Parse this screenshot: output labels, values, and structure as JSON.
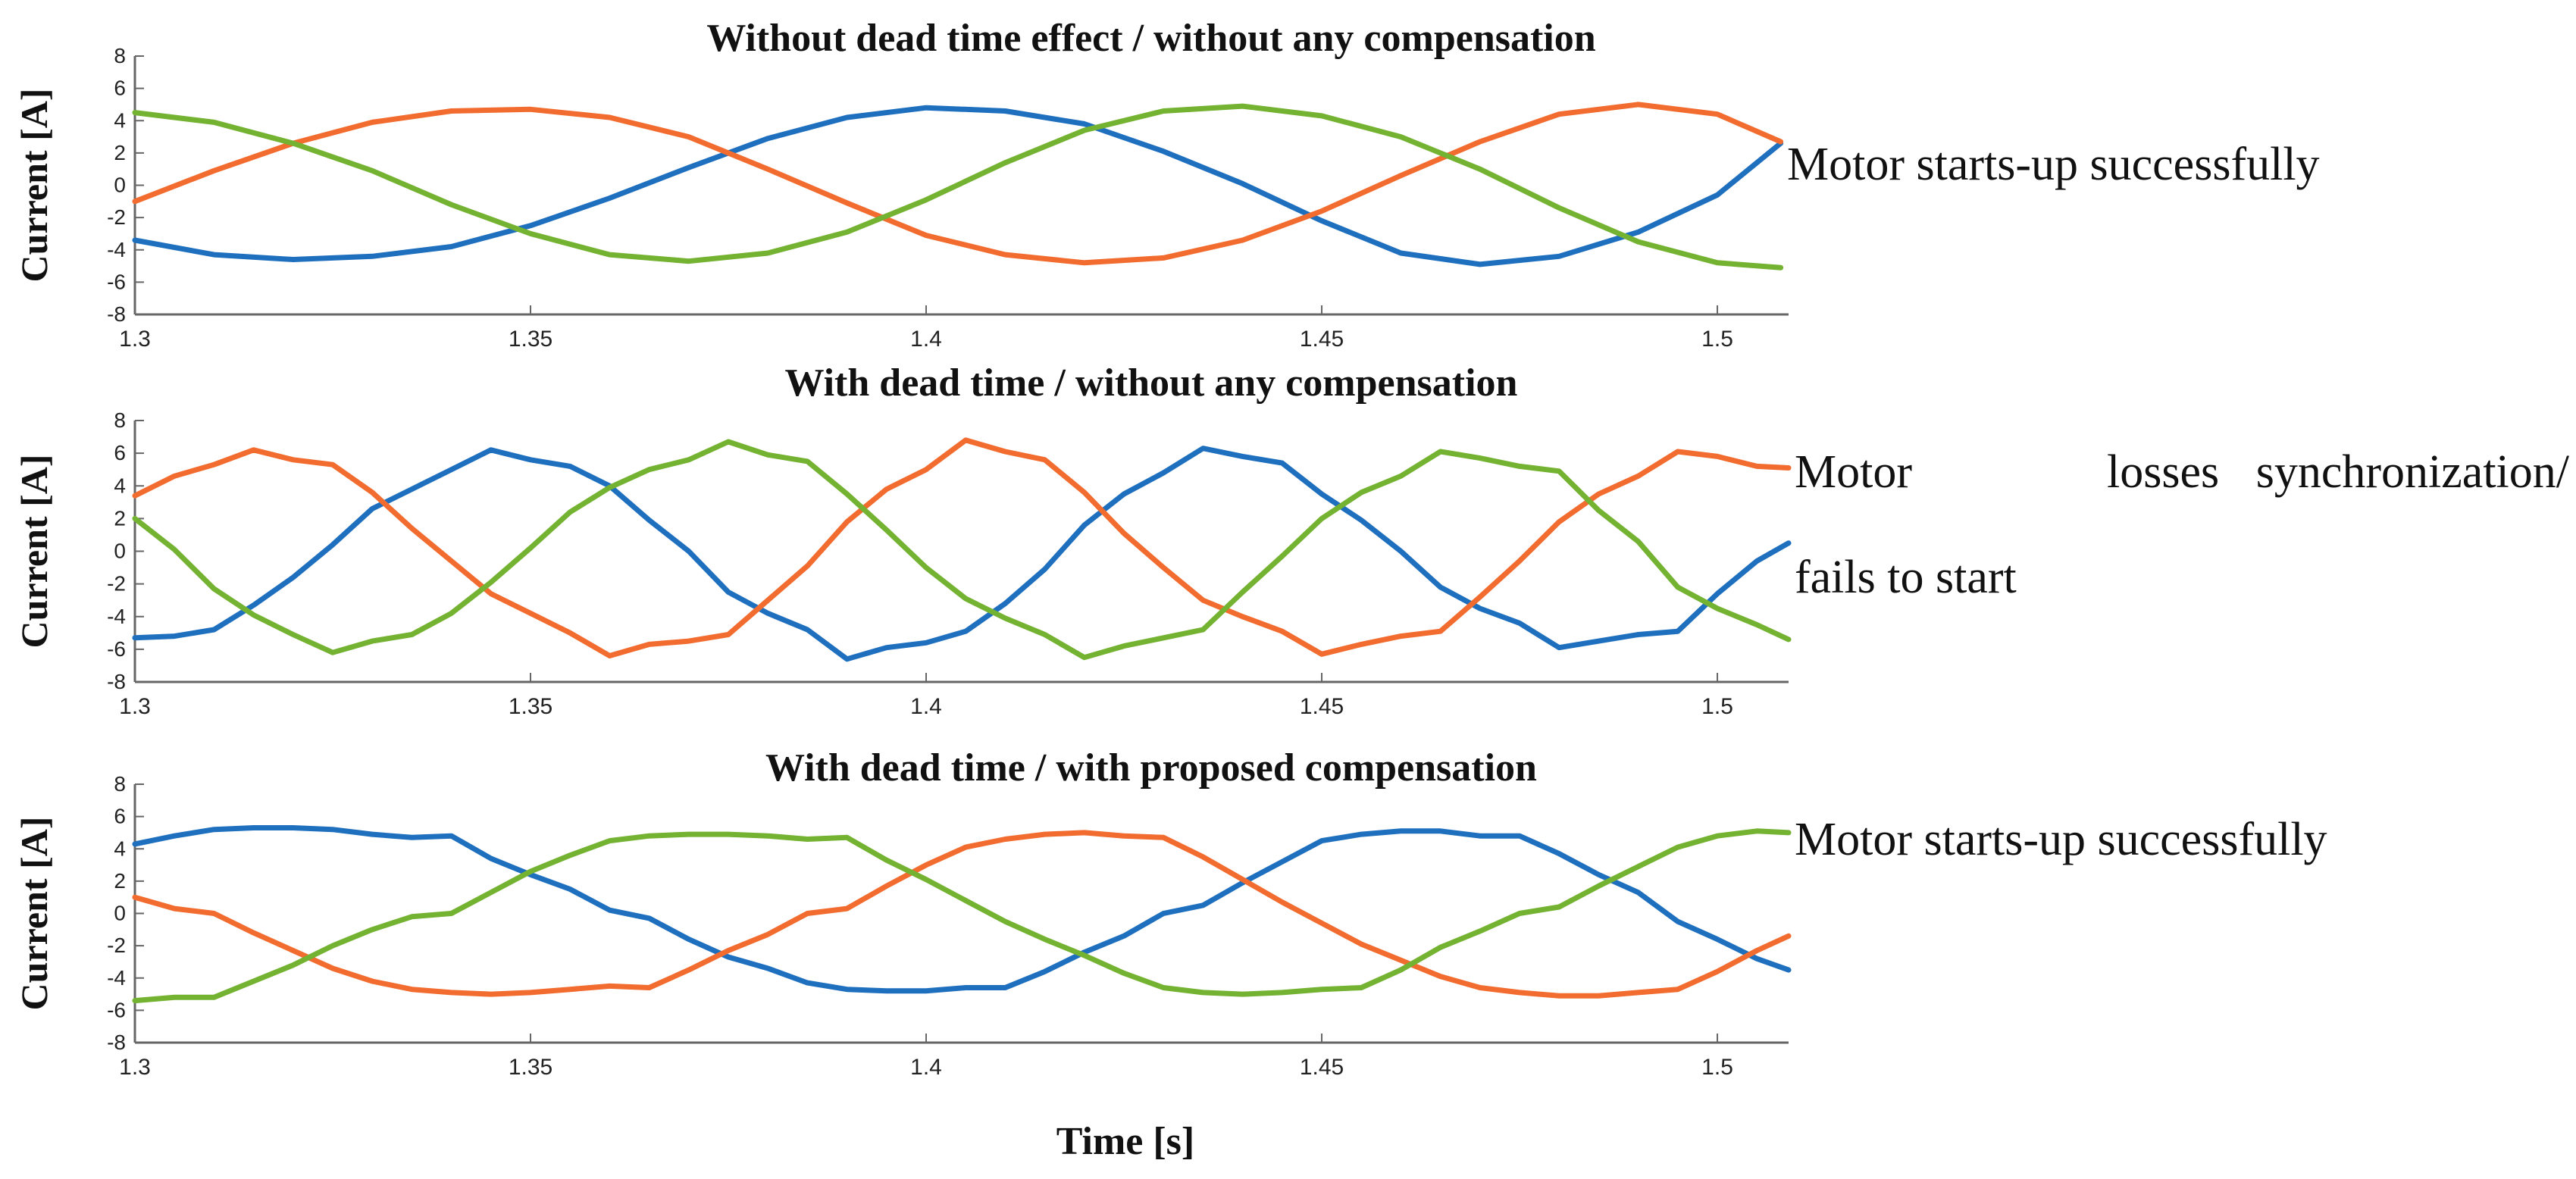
{
  "figure": {
    "xlabel": "Time [s]",
    "colors": {
      "blue": "#1f6fbf",
      "orange": "#f26b2f",
      "green": "#74b231",
      "axis": "#666666"
    }
  },
  "chart_data": [
    {
      "type": "line",
      "title": "Without dead time effect / without any compensation",
      "ylabel": "Current [A]",
      "xlabel": "",
      "xlim": [
        1.3,
        1.509
      ],
      "ylim": [
        -8,
        8
      ],
      "xticks": [
        "1.3",
        "1.35",
        "1.4",
        "1.45",
        "1.5"
      ],
      "yticks": [
        "8",
        "6",
        "4",
        "2",
        "0",
        "-2",
        "-4",
        "-6",
        "-8"
      ],
      "grid": false,
      "annotation": "Motor starts-up successfully",
      "series": [
        {
          "name": "phase-blue",
          "color": "#1f6fbf",
          "x": [
            1.3,
            1.31,
            1.32,
            1.33,
            1.34,
            1.35,
            1.36,
            1.37,
            1.38,
            1.39,
            1.4,
            1.41,
            1.42,
            1.43,
            1.44,
            1.45,
            1.46,
            1.47,
            1.48,
            1.49,
            1.5,
            1.508
          ],
          "values": [
            -3.4,
            -4.3,
            -4.6,
            -4.4,
            -3.8,
            -2.5,
            -0.8,
            1.1,
            2.9,
            4.2,
            4.8,
            4.6,
            3.8,
            2.1,
            0.1,
            -2.2,
            -4.2,
            -4.9,
            -4.4,
            -2.9,
            -0.6,
            2.6
          ]
        },
        {
          "name": "phase-orange",
          "color": "#f26b2f",
          "x": [
            1.3,
            1.31,
            1.32,
            1.33,
            1.34,
            1.35,
            1.36,
            1.37,
            1.38,
            1.39,
            1.4,
            1.41,
            1.42,
            1.43,
            1.44,
            1.45,
            1.46,
            1.47,
            1.48,
            1.49,
            1.5,
            1.508
          ],
          "values": [
            -1.0,
            0.9,
            2.6,
            3.9,
            4.6,
            4.7,
            4.2,
            3.0,
            1.0,
            -1.1,
            -3.1,
            -4.3,
            -4.8,
            -4.5,
            -3.4,
            -1.6,
            0.6,
            2.7,
            4.4,
            5.0,
            4.4,
            2.7
          ]
        },
        {
          "name": "phase-green",
          "color": "#74b231",
          "x": [
            1.3,
            1.31,
            1.32,
            1.33,
            1.34,
            1.35,
            1.36,
            1.37,
            1.38,
            1.39,
            1.4,
            1.41,
            1.42,
            1.43,
            1.44,
            1.45,
            1.46,
            1.47,
            1.48,
            1.49,
            1.5,
            1.508
          ],
          "values": [
            4.5,
            3.9,
            2.6,
            0.9,
            -1.2,
            -3.0,
            -4.3,
            -4.7,
            -4.2,
            -2.9,
            -0.9,
            1.4,
            3.4,
            4.6,
            4.9,
            4.3,
            3.0,
            1.0,
            -1.4,
            -3.5,
            -4.8,
            -5.1
          ]
        }
      ]
    },
    {
      "type": "line",
      "title": "With dead time / without any compensation",
      "ylabel": "Current [A]",
      "xlabel": "",
      "xlim": [
        1.3,
        1.509
      ],
      "ylim": [
        -8,
        8
      ],
      "xticks": [
        "1.3",
        "1.35",
        "1.4",
        "1.45",
        "1.5"
      ],
      "yticks": [
        "8",
        "6",
        "4",
        "2",
        "0",
        "-2",
        "-4",
        "-6",
        "-8"
      ],
      "grid": false,
      "annotation": "Motor losses synchronization/ fails to start",
      "series": [
        {
          "name": "phase-blue",
          "color": "#1f6fbf",
          "x": [
            1.3,
            1.305,
            1.31,
            1.315,
            1.32,
            1.325,
            1.33,
            1.335,
            1.34,
            1.345,
            1.35,
            1.355,
            1.36,
            1.365,
            1.37,
            1.375,
            1.38,
            1.385,
            1.39,
            1.395,
            1.4,
            1.405,
            1.41,
            1.415,
            1.42,
            1.425,
            1.43,
            1.435,
            1.44,
            1.445,
            1.45,
            1.455,
            1.46,
            1.465,
            1.47,
            1.475,
            1.48,
            1.485,
            1.49,
            1.495,
            1.5,
            1.505,
            1.509
          ],
          "values": [
            -5.3,
            -5.2,
            -4.8,
            -3.3,
            -1.6,
            0.4,
            2.6,
            3.8,
            5.0,
            6.2,
            5.6,
            5.2,
            4.0,
            1.9,
            0.0,
            -2.5,
            -3.8,
            -4.8,
            -6.6,
            -5.9,
            -5.6,
            -4.9,
            -3.2,
            -1.1,
            1.6,
            3.5,
            4.8,
            6.3,
            5.8,
            5.4,
            3.5,
            1.9,
            0.0,
            -2.2,
            -3.5,
            -4.4,
            -5.9,
            -5.5,
            -5.1,
            -4.9,
            -2.6,
            -0.6,
            0.5
          ]
        },
        {
          "name": "phase-orange",
          "color": "#f26b2f",
          "x": [
            1.3,
            1.305,
            1.31,
            1.315,
            1.32,
            1.325,
            1.33,
            1.335,
            1.34,
            1.345,
            1.35,
            1.355,
            1.36,
            1.365,
            1.37,
            1.375,
            1.38,
            1.385,
            1.39,
            1.395,
            1.4,
            1.405,
            1.41,
            1.415,
            1.42,
            1.425,
            1.43,
            1.435,
            1.44,
            1.445,
            1.45,
            1.455,
            1.46,
            1.465,
            1.47,
            1.475,
            1.48,
            1.485,
            1.49,
            1.495,
            1.5,
            1.505,
            1.509
          ],
          "values": [
            3.4,
            4.6,
            5.3,
            6.2,
            5.6,
            5.3,
            3.6,
            1.4,
            -0.6,
            -2.6,
            -3.8,
            -5.0,
            -6.4,
            -5.7,
            -5.5,
            -5.1,
            -3.0,
            -0.9,
            1.8,
            3.8,
            5.0,
            6.8,
            6.1,
            5.6,
            3.6,
            1.1,
            -1.0,
            -3.0,
            -4.0,
            -4.9,
            -6.3,
            -5.7,
            -5.2,
            -4.9,
            -2.8,
            -0.6,
            1.8,
            3.5,
            4.6,
            6.1,
            5.8,
            5.2,
            5.1
          ]
        },
        {
          "name": "phase-green",
          "color": "#74b231",
          "x": [
            1.3,
            1.305,
            1.31,
            1.315,
            1.32,
            1.325,
            1.33,
            1.335,
            1.34,
            1.345,
            1.35,
            1.355,
            1.36,
            1.365,
            1.37,
            1.375,
            1.38,
            1.385,
            1.39,
            1.395,
            1.4,
            1.405,
            1.41,
            1.415,
            1.42,
            1.425,
            1.43,
            1.435,
            1.44,
            1.445,
            1.45,
            1.455,
            1.46,
            1.465,
            1.47,
            1.475,
            1.48,
            1.485,
            1.49,
            1.495,
            1.5,
            1.505,
            1.509
          ],
          "values": [
            2.0,
            0.1,
            -2.3,
            -3.9,
            -5.1,
            -6.2,
            -5.5,
            -5.1,
            -3.8,
            -1.9,
            0.2,
            2.4,
            3.9,
            5.0,
            5.6,
            6.7,
            5.9,
            5.5,
            3.5,
            1.3,
            -1.0,
            -2.9,
            -4.1,
            -5.1,
            -6.5,
            -5.8,
            -5.3,
            -4.8,
            -2.5,
            -0.3,
            2.0,
            3.6,
            4.6,
            6.1,
            5.7,
            5.2,
            4.9,
            2.5,
            0.6,
            -2.2,
            -3.5,
            -4.5,
            -5.4
          ]
        }
      ]
    },
    {
      "type": "line",
      "title": "With dead time / with proposed compensation",
      "ylabel": "Current [A]",
      "xlabel": "",
      "xlim": [
        1.3,
        1.509
      ],
      "ylim": [
        -8,
        8
      ],
      "xticks": [
        "1.3",
        "1.35",
        "1.4",
        "1.45",
        "1.5"
      ],
      "yticks": [
        "8",
        "6",
        "4",
        "2",
        "0",
        "-2",
        "-4",
        "-6",
        "-8"
      ],
      "grid": false,
      "annotation": "Motor starts-up successfully",
      "series": [
        {
          "name": "phase-blue",
          "color": "#1f6fbf",
          "x": [
            1.3,
            1.305,
            1.31,
            1.315,
            1.32,
            1.325,
            1.33,
            1.335,
            1.34,
            1.345,
            1.35,
            1.355,
            1.36,
            1.365,
            1.37,
            1.375,
            1.38,
            1.385,
            1.39,
            1.395,
            1.4,
            1.405,
            1.41,
            1.415,
            1.42,
            1.425,
            1.43,
            1.435,
            1.44,
            1.445,
            1.45,
            1.455,
            1.46,
            1.465,
            1.47,
            1.475,
            1.48,
            1.485,
            1.49,
            1.495,
            1.5,
            1.505,
            1.509
          ],
          "values": [
            4.3,
            4.8,
            5.2,
            5.3,
            5.3,
            5.2,
            4.9,
            4.7,
            4.8,
            3.4,
            2.4,
            1.5,
            0.2,
            -0.3,
            -1.6,
            -2.7,
            -3.4,
            -4.3,
            -4.7,
            -4.8,
            -4.8,
            -4.6,
            -4.6,
            -3.6,
            -2.4,
            -1.4,
            0.0,
            0.5,
            1.9,
            3.2,
            4.5,
            4.9,
            5.1,
            5.1,
            4.8,
            4.8,
            3.7,
            2.4,
            1.3,
            -0.5,
            -1.6,
            -2.8,
            -3.5
          ]
        },
        {
          "name": "phase-orange",
          "color": "#f26b2f",
          "x": [
            1.3,
            1.305,
            1.31,
            1.315,
            1.32,
            1.325,
            1.33,
            1.335,
            1.34,
            1.345,
            1.35,
            1.355,
            1.36,
            1.365,
            1.37,
            1.375,
            1.38,
            1.385,
            1.39,
            1.395,
            1.4,
            1.405,
            1.41,
            1.415,
            1.42,
            1.425,
            1.43,
            1.435,
            1.44,
            1.445,
            1.45,
            1.455,
            1.46,
            1.465,
            1.47,
            1.475,
            1.48,
            1.485,
            1.49,
            1.495,
            1.5,
            1.505,
            1.509
          ],
          "values": [
            1.0,
            0.3,
            0.0,
            -1.2,
            -2.3,
            -3.4,
            -4.2,
            -4.7,
            -4.9,
            -5.0,
            -4.9,
            -4.7,
            -4.5,
            -4.6,
            -3.5,
            -2.3,
            -1.3,
            0.0,
            0.3,
            1.7,
            3.0,
            4.1,
            4.6,
            4.9,
            5.0,
            4.8,
            4.7,
            3.5,
            2.1,
            0.7,
            -0.6,
            -1.9,
            -2.9,
            -3.9,
            -4.6,
            -4.9,
            -5.1,
            -5.1,
            -4.9,
            -4.7,
            -3.6,
            -2.3,
            -1.4
          ]
        },
        {
          "name": "phase-green",
          "color": "#74b231",
          "x": [
            1.3,
            1.305,
            1.31,
            1.315,
            1.32,
            1.325,
            1.33,
            1.335,
            1.34,
            1.345,
            1.35,
            1.355,
            1.36,
            1.365,
            1.37,
            1.375,
            1.38,
            1.385,
            1.39,
            1.395,
            1.4,
            1.405,
            1.41,
            1.415,
            1.42,
            1.425,
            1.43,
            1.435,
            1.44,
            1.445,
            1.45,
            1.455,
            1.46,
            1.465,
            1.47,
            1.475,
            1.48,
            1.485,
            1.49,
            1.495,
            1.5,
            1.505,
            1.509
          ],
          "values": [
            -5.4,
            -5.2,
            -5.2,
            -4.2,
            -3.2,
            -2.0,
            -1.0,
            -0.2,
            0.0,
            1.3,
            2.6,
            3.6,
            4.5,
            4.8,
            4.9,
            4.9,
            4.8,
            4.6,
            4.7,
            3.3,
            2.1,
            0.8,
            -0.5,
            -1.6,
            -2.6,
            -3.7,
            -4.6,
            -4.9,
            -5.0,
            -4.9,
            -4.7,
            -4.6,
            -3.5,
            -2.1,
            -1.1,
            0.0,
            0.4,
            1.7,
            2.9,
            4.1,
            4.8,
            5.1,
            5.0
          ]
        }
      ]
    }
  ]
}
